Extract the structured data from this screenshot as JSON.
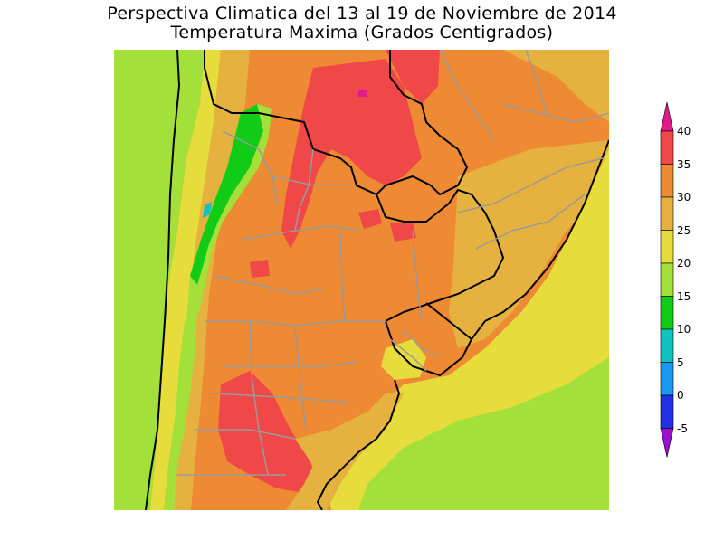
{
  "title": {
    "line1": "Perspectiva Climatica del 13 al 19 de Noviembre de 2014",
    "line2": "Temperatura Maxima (Grados Centigrados)"
  },
  "colorbar": {
    "levels": [
      {
        "value": "40",
        "color": "#e01a8a"
      },
      {
        "value": "35",
        "color": "#f04848"
      },
      {
        "value": "30",
        "color": "#ee8a33"
      },
      {
        "value": "25",
        "color": "#e6b23f"
      },
      {
        "value": "20",
        "color": "#e6dc3c"
      },
      {
        "value": "15",
        "color": "#a3e03a"
      },
      {
        "value": "10",
        "color": "#10cc16"
      },
      {
        "value": "5",
        "color": "#10c3c0"
      },
      {
        "value": "0",
        "color": "#1898f0"
      },
      {
        "value": "-5",
        "color": "#2030e8"
      }
    ],
    "below_color": "#9a10d0",
    "above_color": "#e01a8a"
  },
  "map": {
    "region": "Argentina, Uruguay, Paraguay, sur de Brasil",
    "colors": {
      "hot": "#f04848",
      "warm": "#ee8a33",
      "mild": "#e6b23f",
      "yellow": "#e6dc3c",
      "lightgreen": "#a3e03a",
      "green": "#10cc16",
      "cyan": "#10c3c0",
      "magenta": "#e01a8a",
      "border": "#000000",
      "provinces": "#9a9a9a"
    }
  }
}
